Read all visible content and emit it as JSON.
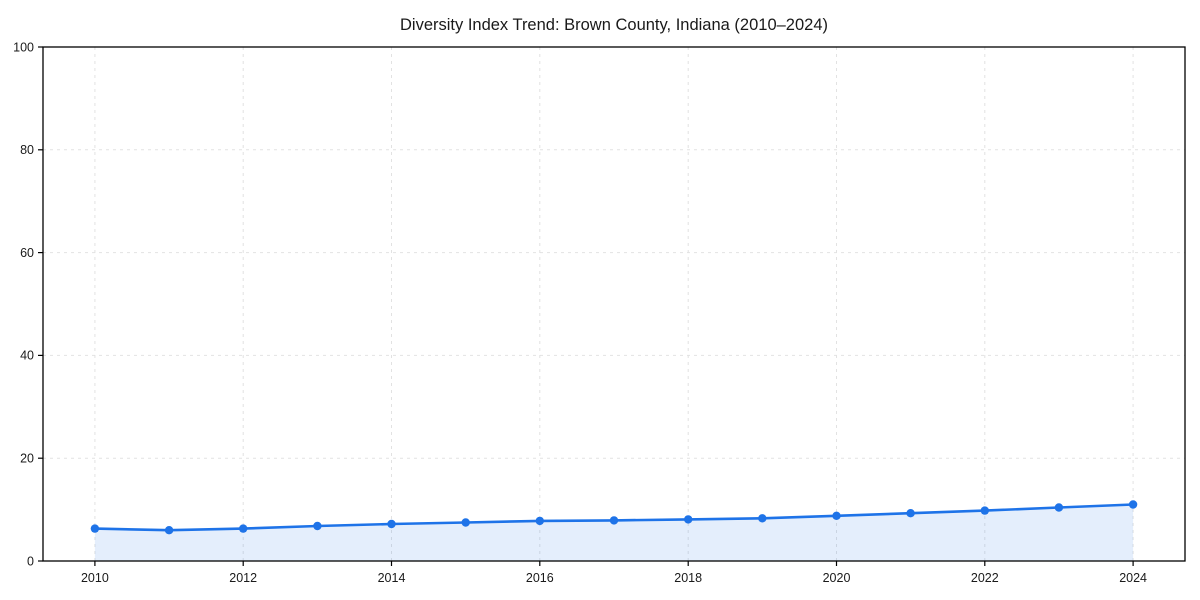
{
  "chart_data": {
    "type": "line",
    "title": "Diversity Index Trend: Brown County, Indiana (2010–2024)",
    "xlabel": "",
    "ylabel": "",
    "x": [
      2010,
      2011,
      2012,
      2013,
      2014,
      2015,
      2016,
      2017,
      2018,
      2019,
      2020,
      2021,
      2022,
      2023,
      2024
    ],
    "series": [
      {
        "name": "Diversity Index",
        "values": [
          6.3,
          6.0,
          6.3,
          6.8,
          7.2,
          7.5,
          7.8,
          7.9,
          8.1,
          8.3,
          8.8,
          9.3,
          9.8,
          10.4,
          11.0
        ]
      }
    ],
    "xlim": [
      2009.3,
      2024.7
    ],
    "ylim": [
      0,
      100
    ],
    "x_ticks": [
      2010,
      2012,
      2014,
      2016,
      2018,
      2020,
      2022,
      2024
    ],
    "y_ticks": [
      0,
      20,
      40,
      60,
      80,
      100
    ],
    "grid": true,
    "grid_style": "dashed",
    "legend": "none",
    "marker": "circle",
    "colors": {
      "line": "#1e73e8",
      "marker": "#1e73e8",
      "fill": "#1e73e8",
      "fill_opacity": 0.12,
      "grid": "#e2e2e2",
      "axis": "#000000",
      "text": "#1a1a1a",
      "background": "#ffffff"
    }
  }
}
